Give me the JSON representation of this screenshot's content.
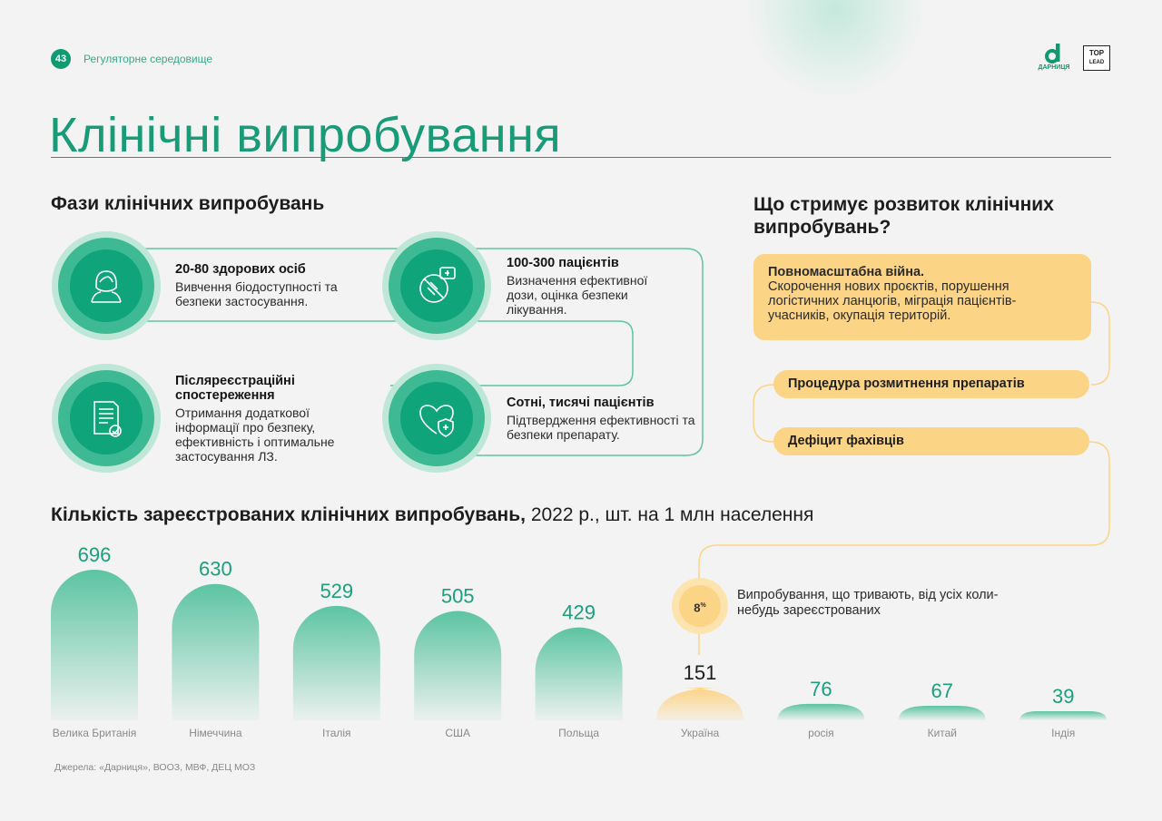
{
  "header": {
    "page_number": "43",
    "section": "Регуляторне середовище",
    "logo_primary": "ДАРНИЦЯ",
    "logo_secondary_line1": "TOP",
    "logo_secondary_line2": "LEAD"
  },
  "title": "Клінічні випробування",
  "phases": {
    "heading": "Фази клінічних випробувань",
    "items": [
      {
        "icon": "person-icon",
        "title": "20-80 здорових осіб",
        "desc": "Вивчення біодоступності та безпеки застосування."
      },
      {
        "icon": "no-pills-icon",
        "title": "100-300 пацієнтів",
        "desc": "Визначення ефективної дози, оцінка безпеки лікування."
      },
      {
        "icon": "heart-shield-icon",
        "title": "Сотні, тисячі пацієнтів",
        "desc": "Підтвердження ефективності та безпеки препарату."
      },
      {
        "icon": "document-check-icon",
        "title": "Післяреєстраційні спостереження",
        "desc": "Отримання додаткової інформації про безпеку, ефективність і оптимальне застосування ЛЗ."
      }
    ]
  },
  "blockers": {
    "heading": "Що стримує розвиток клінічних випробувань?",
    "main_title": "Повномасштабна війна.",
    "main_desc": "Скорочення нових проєктів, порушення логістичних ланцюгів, міграція пацієнтів-учасників, окупація територій.",
    "items": [
      "Процедура розмитнення препаратів",
      "Дефіцит фахівців"
    ]
  },
  "chart_data": {
    "type": "bar",
    "title_bold": "Кількість зареєстрованих клінічних випробувань,",
    "title_rest": "2022 р., шт. на 1 млн населення",
    "categories": [
      "Велика Британія",
      "Німеччина",
      "Італія",
      "США",
      "Польща",
      "Україна",
      "росія",
      "Китай",
      "Індія"
    ],
    "values": [
      696,
      630,
      529,
      505,
      429,
      151,
      76,
      67,
      39
    ],
    "highlight_category": "Україна",
    "colors": {
      "bar": "#5cc4a2",
      "highlight": "#fcd486",
      "label": "#1aa07b"
    },
    "annotation": {
      "value": "8",
      "unit": "%",
      "text": "Випробування, що тривають, від усіх коли-небудь зареєстрованих"
    },
    "ylim": [
      0,
      696
    ]
  },
  "source": "Джерела: «Дарниця», ВООЗ, МВФ, ДЕЦ МОЗ"
}
